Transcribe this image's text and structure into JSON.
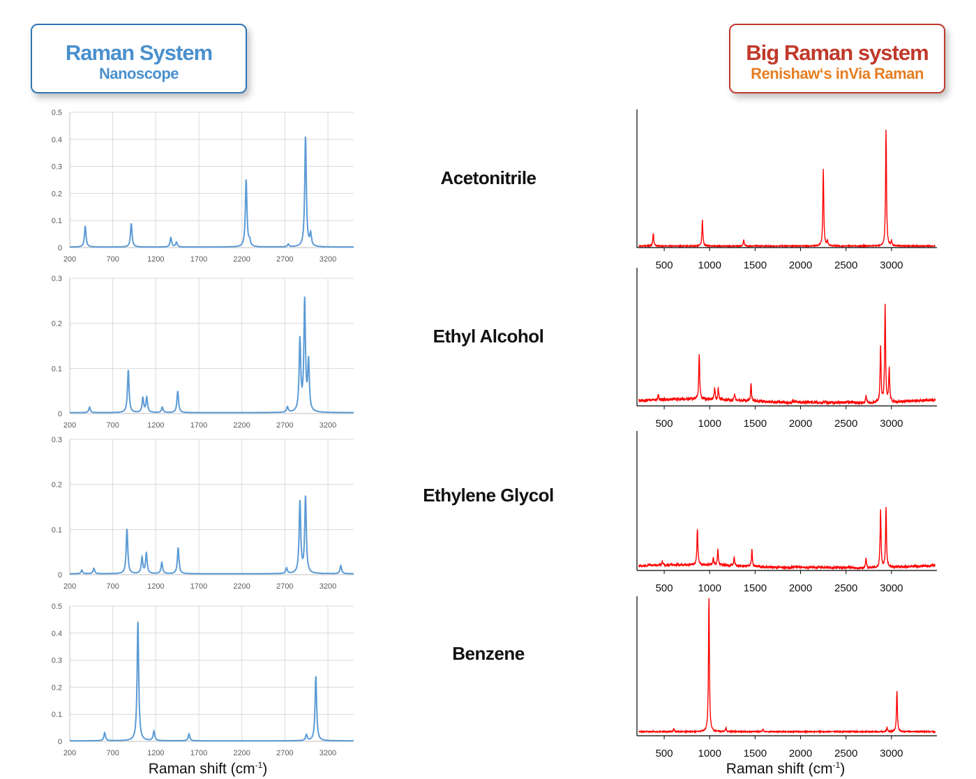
{
  "left_header": {
    "title": "Raman System",
    "subtitle": "Nanoscope"
  },
  "right_header": {
    "title": "Big Raman system",
    "subtitle": "Renishaw‘s inVia Raman"
  },
  "xlabel": {
    "text": "Raman shift",
    "paren_open": "(",
    "unit": "cm",
    "exp": "-1",
    "paren_close": ")"
  },
  "colors": {
    "left_line": "#5B9BD5",
    "right_line": "#FF0000",
    "grid": "#D9D9D9"
  },
  "chart_data": [
    {
      "panel": "nanoscope",
      "compound": "Acetonitrile",
      "type": "line",
      "xticks": [
        200,
        700,
        1200,
        1700,
        2200,
        2700,
        3200
      ],
      "yticks": [
        "0",
        "0.1",
        "0.2",
        "0.3",
        "0.4",
        "0.5"
      ],
      "xlim": [
        200,
        3500
      ],
      "ylim": [
        0,
        0.5
      ],
      "grid": true,
      "peaks": [
        [
          380,
          0.078
        ],
        [
          915,
          0.088
        ],
        [
          1375,
          0.035
        ],
        [
          1440,
          0.018
        ],
        [
          2250,
          0.25
        ],
        [
          2290,
          0.02
        ],
        [
          2740,
          0.01
        ],
        [
          2940,
          0.41
        ],
        [
          3000,
          0.045
        ]
      ]
    },
    {
      "panel": "nanoscope",
      "compound": "Ethyl Alcohol",
      "type": "line",
      "xticks": [
        200,
        700,
        1200,
        1700,
        2200,
        2700,
        3200
      ],
      "yticks": [
        "0",
        "0.1",
        "0.2",
        "0.3"
      ],
      "xlim": [
        200,
        3500
      ],
      "ylim": [
        0,
        0.3
      ],
      "grid": true,
      "peaks": [
        [
          430,
          0.012
        ],
        [
          880,
          0.095
        ],
        [
          1050,
          0.032
        ],
        [
          1095,
          0.033
        ],
        [
          1275,
          0.012
        ],
        [
          1455,
          0.048
        ],
        [
          2730,
          0.012
        ],
        [
          2875,
          0.16
        ],
        [
          2930,
          0.245
        ],
        [
          2975,
          0.11
        ]
      ]
    },
    {
      "panel": "nanoscope",
      "compound": "Ethylene Glycol",
      "type": "line",
      "xticks": [
        200,
        700,
        1200,
        1700,
        2200,
        2700,
        3200
      ],
      "yticks": [
        "0",
        "0.1",
        "0.2",
        "0.3"
      ],
      "xlim": [
        200,
        3500
      ],
      "ylim": [
        0,
        0.3
      ],
      "grid": true,
      "peaks": [
        [
          340,
          0.008
        ],
        [
          480,
          0.012
        ],
        [
          865,
          0.1
        ],
        [
          1040,
          0.035
        ],
        [
          1090,
          0.045
        ],
        [
          1270,
          0.025
        ],
        [
          1460,
          0.058
        ],
        [
          2720,
          0.012
        ],
        [
          2875,
          0.16
        ],
        [
          2940,
          0.17
        ],
        [
          3350,
          0.018
        ]
      ]
    },
    {
      "panel": "nanoscope",
      "compound": "Benzene",
      "type": "line",
      "xticks": [
        200,
        700,
        1200,
        1700,
        2200,
        2700,
        3200
      ],
      "yticks": [
        "0",
        "0.1",
        "0.2",
        "0.3",
        "0.4",
        "0.5"
      ],
      "xlim": [
        200,
        3500
      ],
      "ylim": [
        0,
        0.5
      ],
      "grid": true,
      "peaks": [
        [
          606,
          0.03
        ],
        [
          992,
          0.44
        ],
        [
          1178,
          0.035
        ],
        [
          1586,
          0.025
        ],
        [
          2950,
          0.022
        ],
        [
          3060,
          0.24
        ]
      ]
    },
    {
      "panel": "invia",
      "compound": "Acetonitrile",
      "type": "line",
      "xticks": [
        500,
        1000,
        1500,
        2000,
        2500,
        3000
      ],
      "xlim": [
        200,
        3500
      ],
      "peaks": [
        [
          380,
          0.1
        ],
        [
          920,
          0.2
        ],
        [
          1375,
          0.05
        ],
        [
          2250,
          0.6
        ],
        [
          2295,
          0.04
        ],
        [
          2940,
          0.9
        ],
        [
          3000,
          0.04
        ]
      ]
    },
    {
      "panel": "invia",
      "compound": "Ethyl Alcohol",
      "type": "line",
      "xticks": [
        500,
        1000,
        1500,
        2000,
        2500,
        3000
      ],
      "xlim": [
        200,
        3500
      ],
      "peaks": [
        [
          435,
          0.04
        ],
        [
          885,
          0.4
        ],
        [
          1055,
          0.1
        ],
        [
          1095,
          0.1
        ],
        [
          1275,
          0.05
        ],
        [
          1455,
          0.15
        ],
        [
          2720,
          0.06
        ],
        [
          2880,
          0.5
        ],
        [
          2930,
          0.85
        ],
        [
          2975,
          0.3
        ]
      ]
    },
    {
      "panel": "invia",
      "compound": "Ethylene Glycol",
      "type": "line",
      "xticks": [
        500,
        1000,
        1500,
        2000,
        2500,
        3000
      ],
      "xlim": [
        200,
        3500
      ],
      "peaks": [
        [
          340,
          0.02
        ],
        [
          480,
          0.04
        ],
        [
          865,
          0.38
        ],
        [
          1040,
          0.08
        ],
        [
          1090,
          0.16
        ],
        [
          1270,
          0.09
        ],
        [
          1465,
          0.17
        ],
        [
          2720,
          0.1
        ],
        [
          2880,
          0.6
        ],
        [
          2940,
          0.62
        ]
      ]
    },
    {
      "panel": "invia",
      "compound": "Benzene",
      "type": "line",
      "xticks": [
        500,
        1000,
        1500,
        2000,
        2500,
        3000
      ],
      "xlim": [
        200,
        3500
      ],
      "peaks": [
        [
          606,
          0.02
        ],
        [
          992,
          0.99
        ],
        [
          1178,
          0.03
        ],
        [
          1586,
          0.02
        ],
        [
          2950,
          0.03
        ],
        [
          3060,
          0.3
        ]
      ]
    }
  ]
}
